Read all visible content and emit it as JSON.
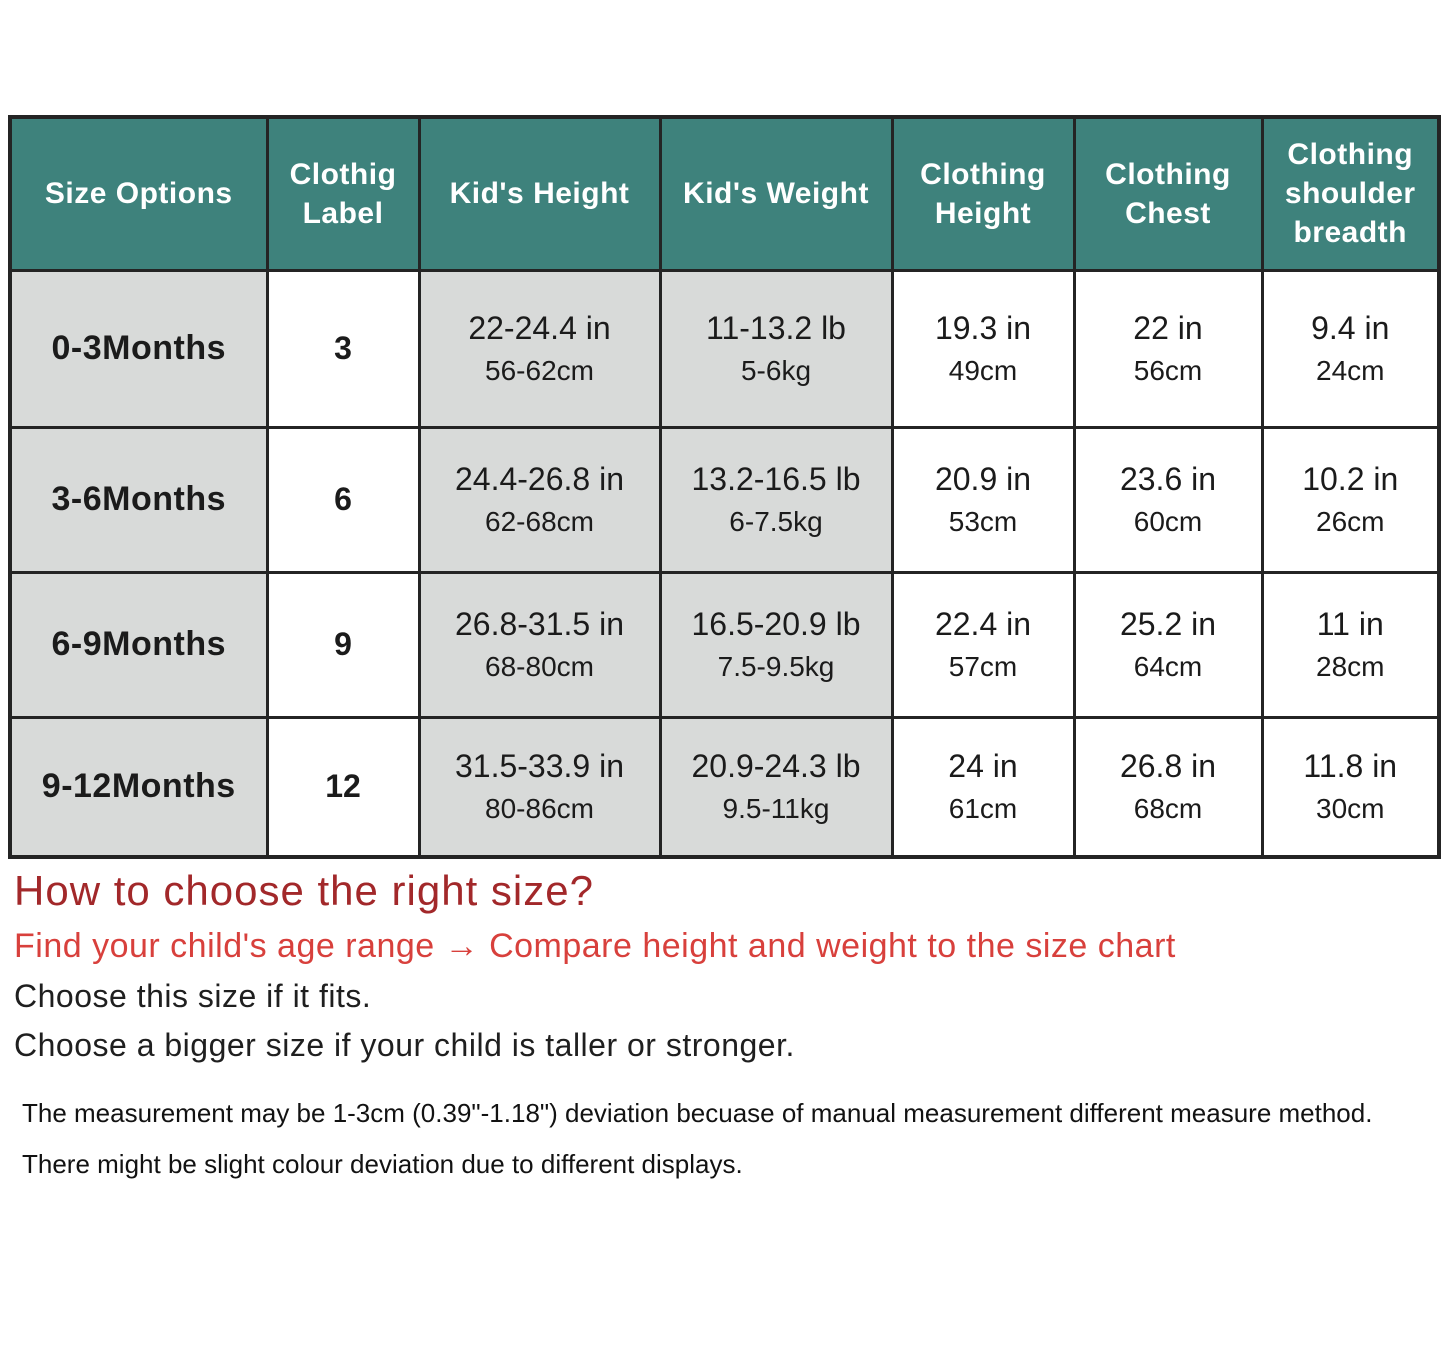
{
  "colors": {
    "header_bg": "#3e827c",
    "header_text": "#ffffff",
    "shaded_cell_bg": "#d8dad9",
    "plain_cell_bg": "#ffffff",
    "border_color": "#242424",
    "body_text": "#1b1b1b",
    "heading_red": "#a2282a",
    "instruction_red": "#d8403c"
  },
  "table": {
    "columns": [
      "Size Options",
      "Clothig Label",
      "Kid's Height",
      "Kid's Weight",
      "Clothing Height",
      "Clothing Chest",
      "Clothing shoulder breadth"
    ],
    "shaded_column_indexes": [
      0,
      2,
      3
    ],
    "rows": [
      {
        "cells": [
          {
            "line1": "0-3Months"
          },
          {
            "line1": "3"
          },
          {
            "line1": "22-24.4 in",
            "line2": "56-62cm"
          },
          {
            "line1": "11-13.2 lb",
            "line2": "5-6kg"
          },
          {
            "line1": "19.3 in",
            "line2": "49cm"
          },
          {
            "line1": "22 in",
            "line2": "56cm"
          },
          {
            "line1": "9.4 in",
            "line2": "24cm"
          }
        ]
      },
      {
        "cells": [
          {
            "line1": "3-6Months"
          },
          {
            "line1": "6"
          },
          {
            "line1": "24.4-26.8 in",
            "line2": "62-68cm"
          },
          {
            "line1": "13.2-16.5 lb",
            "line2": "6-7.5kg"
          },
          {
            "line1": "20.9 in",
            "line2": "53cm"
          },
          {
            "line1": "23.6 in",
            "line2": "60cm"
          },
          {
            "line1": "10.2 in",
            "line2": "26cm"
          }
        ]
      },
      {
        "cells": [
          {
            "line1": "6-9Months"
          },
          {
            "line1": "9"
          },
          {
            "line1": "26.8-31.5 in",
            "line2": "68-80cm"
          },
          {
            "line1": "16.5-20.9 lb",
            "line2": "7.5-9.5kg"
          },
          {
            "line1": "22.4 in",
            "line2": "57cm"
          },
          {
            "line1": "25.2 in",
            "line2": "64cm"
          },
          {
            "line1": "11 in",
            "line2": "28cm"
          }
        ]
      },
      {
        "cells": [
          {
            "line1": "9-12Months"
          },
          {
            "line1": "12"
          },
          {
            "line1": "31.5-33.9 in",
            "line2": "80-86cm"
          },
          {
            "line1": "20.9-24.3 lb",
            "line2": "9.5-11kg"
          },
          {
            "line1": "24 in",
            "line2": "61cm"
          },
          {
            "line1": "26.8 in",
            "line2": "68cm"
          },
          {
            "line1": "11.8 in",
            "line2": "30cm"
          }
        ]
      }
    ]
  },
  "notes": {
    "heading": "How to choose the right size?",
    "instruction": "Find your child's age range → Compare height and weight to the size chart",
    "tip1": "Choose this size if it fits.",
    "tip2": "Choose a bigger size if your child is taller or stronger.",
    "footnote1": "The measurement may be 1-3cm (0.39\"-1.18\") deviation becuase of manual measurement different measure method.",
    "footnote2": "There might be slight colour deviation due to different displays."
  }
}
